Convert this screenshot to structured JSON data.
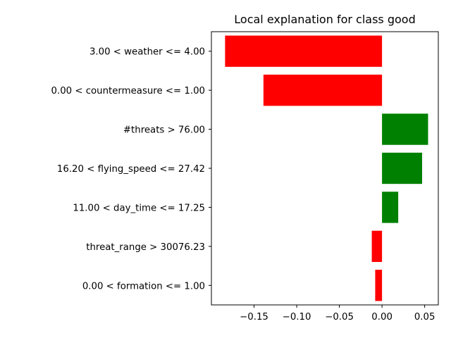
{
  "chart_data": {
    "type": "bar",
    "orientation": "horizontal",
    "title": "Local explanation for class good",
    "xlabel": "",
    "ylabel": "",
    "categories": [
      "3.00 < weather <= 4.00",
      "0.00 < countermeasure <= 1.00",
      "#threats > 76.00",
      "16.20 < flying_speed <= 27.42",
      "11.00 < day_time <= 17.25",
      "threat_range > 30076.23",
      "0.00 < formation <= 1.00"
    ],
    "values": [
      -0.184,
      -0.139,
      0.054,
      0.047,
      0.019,
      -0.012,
      -0.008
    ],
    "xlim": [
      -0.2,
      0.066
    ],
    "xticks": [
      -0.15,
      -0.1,
      -0.05,
      0.0,
      0.05
    ],
    "xtick_labels": [
      "−0.15",
      "−0.10",
      "−0.05",
      "0.00",
      "0.05"
    ],
    "colors": {
      "positive": "#008000",
      "negative": "#ff0000"
    },
    "grid": false,
    "legend": "none"
  }
}
